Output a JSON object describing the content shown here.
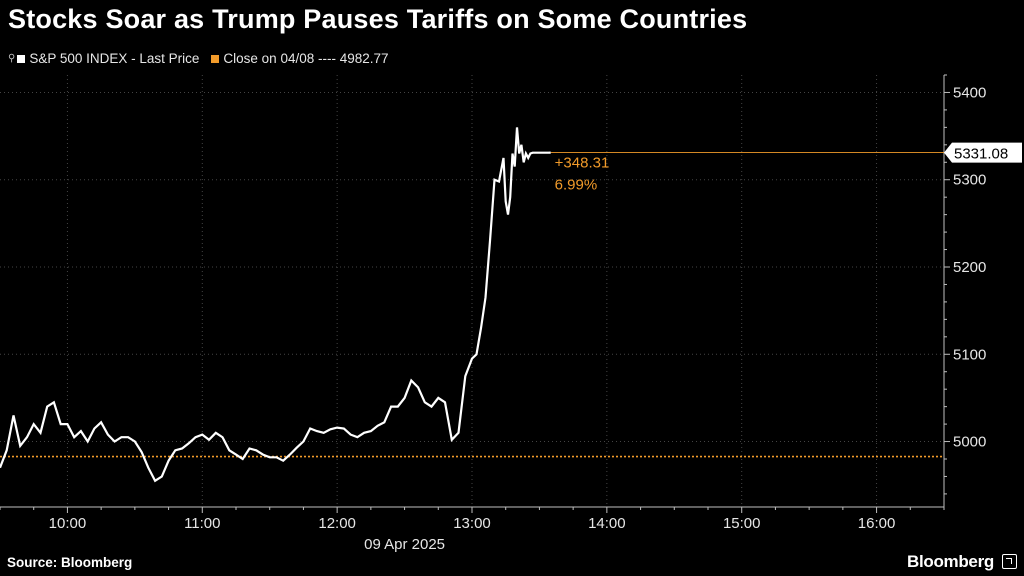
{
  "chart_data": {
    "type": "line",
    "title": "Stocks Soar as Trump Pauses Tariffs on Some Countries",
    "legend": [
      {
        "label": "S&P 500 INDEX - Last Price",
        "color": "#ffffff"
      },
      {
        "label": "Close on 04/08 ---- 4982.77",
        "color": "#f29b2a"
      }
    ],
    "reference_line": {
      "value": 4982.77,
      "style": "dotted",
      "color": "#f29b2a"
    },
    "last_value_label": "5331.08",
    "last_value": 5331.08,
    "change_label": "+348.31",
    "change_pct_label": "6.99%",
    "date_label": "09 Apr 2025",
    "x_ticks": [
      "10:00",
      "11:00",
      "12:00",
      "13:00",
      "14:00",
      "15:00",
      "16:00"
    ],
    "y_ticks": [
      "5000",
      "5100",
      "5200",
      "5300",
      "5400"
    ],
    "xlim": [
      "09:30",
      "16:30"
    ],
    "ylim": [
      4925,
      5420
    ],
    "series": [
      {
        "name": "S&P 500 INDEX - Last Price",
        "color": "#ffffff",
        "x": [
          "09:30",
          "09:33",
          "09:36",
          "09:39",
          "09:42",
          "09:45",
          "09:48",
          "09:51",
          "09:54",
          "09:57",
          "10:00",
          "10:03",
          "10:06",
          "10:09",
          "10:12",
          "10:15",
          "10:18",
          "10:21",
          "10:24",
          "10:27",
          "10:30",
          "10:33",
          "10:36",
          "10:39",
          "10:42",
          "10:45",
          "10:48",
          "10:51",
          "10:54",
          "10:57",
          "11:00",
          "11:03",
          "11:06",
          "11:09",
          "11:12",
          "11:15",
          "11:18",
          "11:21",
          "11:24",
          "11:27",
          "11:30",
          "11:33",
          "11:36",
          "11:39",
          "11:42",
          "11:45",
          "11:48",
          "11:51",
          "11:54",
          "11:57",
          "12:00",
          "12:03",
          "12:06",
          "12:09",
          "12:12",
          "12:15",
          "12:18",
          "12:21",
          "12:24",
          "12:27",
          "12:30",
          "12:33",
          "12:36",
          "12:39",
          "12:42",
          "12:45",
          "12:48",
          "12:51",
          "12:54",
          "12:57",
          "13:00",
          "13:02",
          "13:04",
          "13:06",
          "13:08",
          "13:10",
          "13:12",
          "13:14",
          "13:15",
          "13:16",
          "13:17",
          "13:18",
          "13:19",
          "13:20",
          "13:21",
          "13:22",
          "13:23",
          "13:24",
          "13:25",
          "13:26",
          "13:27",
          "13:28",
          "13:29",
          "13:30",
          "13:31",
          "13:32",
          "13:33",
          "13:34",
          "13:35"
        ],
        "values": [
          4970,
          4990,
          5030,
          4995,
          5005,
          5020,
          5010,
          5040,
          5045,
          5020,
          5020,
          5005,
          5012,
          5000,
          5015,
          5022,
          5008,
          5000,
          5005,
          5005,
          5000,
          4988,
          4970,
          4955,
          4960,
          4978,
          4990,
          4992,
          4998,
          5005,
          5008,
          5002,
          5010,
          5005,
          4990,
          4985,
          4980,
          4992,
          4990,
          4985,
          4982,
          4982,
          4978,
          4985,
          4993,
          5000,
          5015,
          5012,
          5010,
          5014,
          5016,
          5015,
          5008,
          5005,
          5010,
          5012,
          5018,
          5022,
          5040,
          5040,
          5050,
          5070,
          5062,
          5045,
          5040,
          5050,
          5045,
          5002,
          5010,
          5075,
          5095,
          5100,
          5130,
          5165,
          5230,
          5300,
          5298,
          5325,
          5275,
          5260,
          5280,
          5330,
          5315,
          5360,
          5330,
          5340,
          5320,
          5330,
          5325,
          5330,
          5331,
          5331,
          5331,
          5331,
          5331,
          5331,
          5331,
          5331,
          5331.08
        ]
      }
    ]
  }
}
